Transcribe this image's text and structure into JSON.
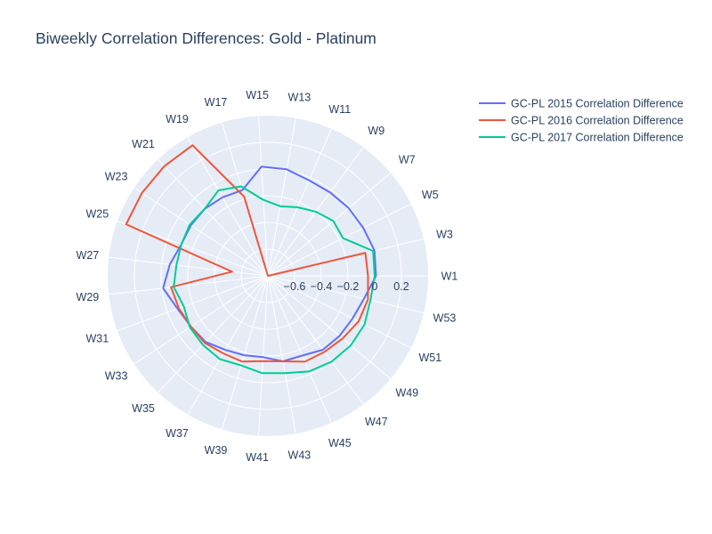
{
  "chart_data": {
    "type": "polar-line",
    "title": "Biweekly Correlation Differences: Gold - Platinum",
    "theta_labels": [
      "W1",
      "W3",
      "W5",
      "W7",
      "W9",
      "W11",
      "W13",
      "W15",
      "W17",
      "W19",
      "W21",
      "W23",
      "W25",
      "W27",
      "W29",
      "W31",
      "W33",
      "W35",
      "W37",
      "W39",
      "W41",
      "W43",
      "W45",
      "W47",
      "W49",
      "W51",
      "W53"
    ],
    "radial_range": [
      -0.8,
      0.4
    ],
    "radial_ticks": [
      -0.6,
      -0.4,
      -0.2,
      0,
      0.2
    ],
    "radial_tick_labels": [
      "−0.6",
      "−0.4",
      "−0.2",
      "0",
      "0.2"
    ],
    "grid": true,
    "legend_position": "top-right",
    "series": [
      {
        "name": "GC-PL 2015 Correlation Difference",
        "color": "#636efa",
        "values": [
          0.01,
          0.02,
          0.0,
          -0.01,
          -0.02,
          -0.02,
          0.01,
          0.02,
          -0.13,
          -0.12,
          -0.11,
          -0.11,
          -0.11,
          -0.06,
          -0.01,
          -0.08,
          -0.11,
          -0.12,
          -0.16,
          -0.18,
          -0.19,
          -0.15,
          -0.15,
          -0.11,
          -0.1,
          -0.09,
          -0.06
        ]
      },
      {
        "name": "GC-PL 2016 Correlation Difference",
        "color": "#ef553b",
        "values": [
          -0.05,
          -0.05,
          -0.8,
          -0.8,
          -0.8,
          -0.8,
          -0.8,
          -0.8,
          -0.18,
          0.33,
          0.33,
          0.33,
          0.33,
          -0.53,
          -0.07,
          -0.09,
          -0.11,
          -0.11,
          -0.13,
          -0.13,
          -0.16,
          -0.15,
          -0.1,
          -0.09,
          -0.07,
          -0.04,
          -0.03
        ]
      },
      {
        "name": "GC-PL 2017 Correlation Difference",
        "color": "#00cc96",
        "values": [
          0.0,
          0.01,
          -0.17,
          -0.16,
          -0.2,
          -0.24,
          -0.27,
          -0.23,
          -0.1,
          -0.06,
          -0.11,
          -0.1,
          -0.11,
          -0.11,
          -0.09,
          -0.13,
          -0.1,
          -0.09,
          -0.08,
          -0.1,
          -0.07,
          -0.06,
          -0.02,
          0.0,
          0.01,
          0.01,
          -0.01
        ]
      }
    ]
  },
  "colors": {
    "polar_background": "#e5ecf6",
    "grid": "#ffffff",
    "text": "#2a3f5f"
  }
}
